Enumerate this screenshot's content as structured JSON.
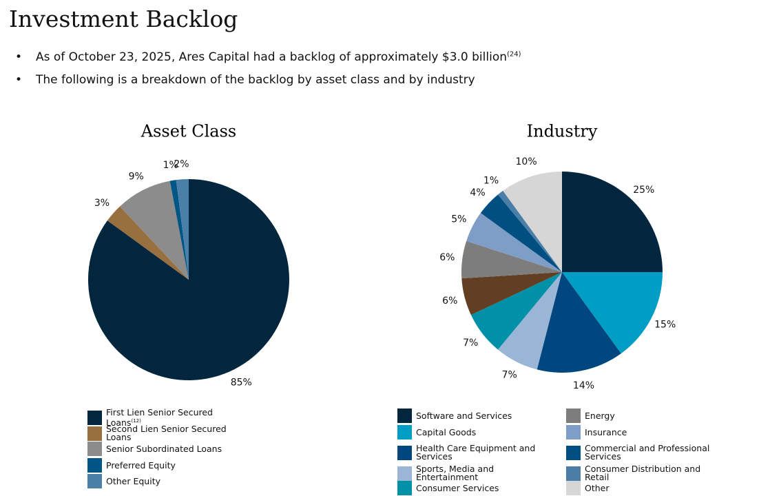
{
  "title": "Investment Backlog",
  "bullets": [
    {
      "text": "As of October 23, 2025, Ares Capital had a backlog of approximately $3.0 billion",
      "note": "(24)"
    },
    {
      "text": "The following is a breakdown of the backlog by asset class and by industry"
    }
  ],
  "chart_data": [
    {
      "type": "pie",
      "title": "Asset Class",
      "categories": [
        "First Lien Senior Secured Loans",
        "Second Lien Senior Secured Loans",
        "Senior Subordinated Loans",
        "Preferred Equity",
        "Other Equity"
      ],
      "legend_notes": [
        "(12)",
        null,
        null,
        null,
        null
      ],
      "values": [
        85,
        3,
        9,
        1,
        2
      ],
      "value_labels": [
        "85%",
        "3%",
        "9%",
        "1%",
        "2%"
      ],
      "colors": [
        "#03263f",
        "#98703f",
        "#8c8c8c",
        "#005587",
        "#4a7fa8"
      ]
    },
    {
      "type": "pie",
      "title": "Industry",
      "categories": [
        "Software and Services",
        "Capital Goods",
        "Health Care Equipment and Services",
        "Sports, Media and Entertainment",
        "Consumer Services",
        null,
        "Energy",
        "Insurance",
        "Commercial and Professional Services",
        "Consumer Distribution and Retail",
        "Other"
      ],
      "values": [
        25,
        15,
        14,
        7,
        7,
        6,
        6,
        5,
        4,
        1,
        10
      ],
      "value_labels": [
        "25%",
        "15%",
        "14%",
        "7%",
        "7%",
        "6%",
        "6%",
        "5%",
        "4%",
        "1%",
        "10%"
      ],
      "colors": [
        "#03263f",
        "#009dc4",
        "#00467f",
        "#9ab5d6",
        "#0090a8",
        "#623f23",
        "#7d7d7d",
        "#7f9ec7",
        "#004f80",
        "#4a7ea6",
        "#d6d6d6"
      ]
    }
  ]
}
